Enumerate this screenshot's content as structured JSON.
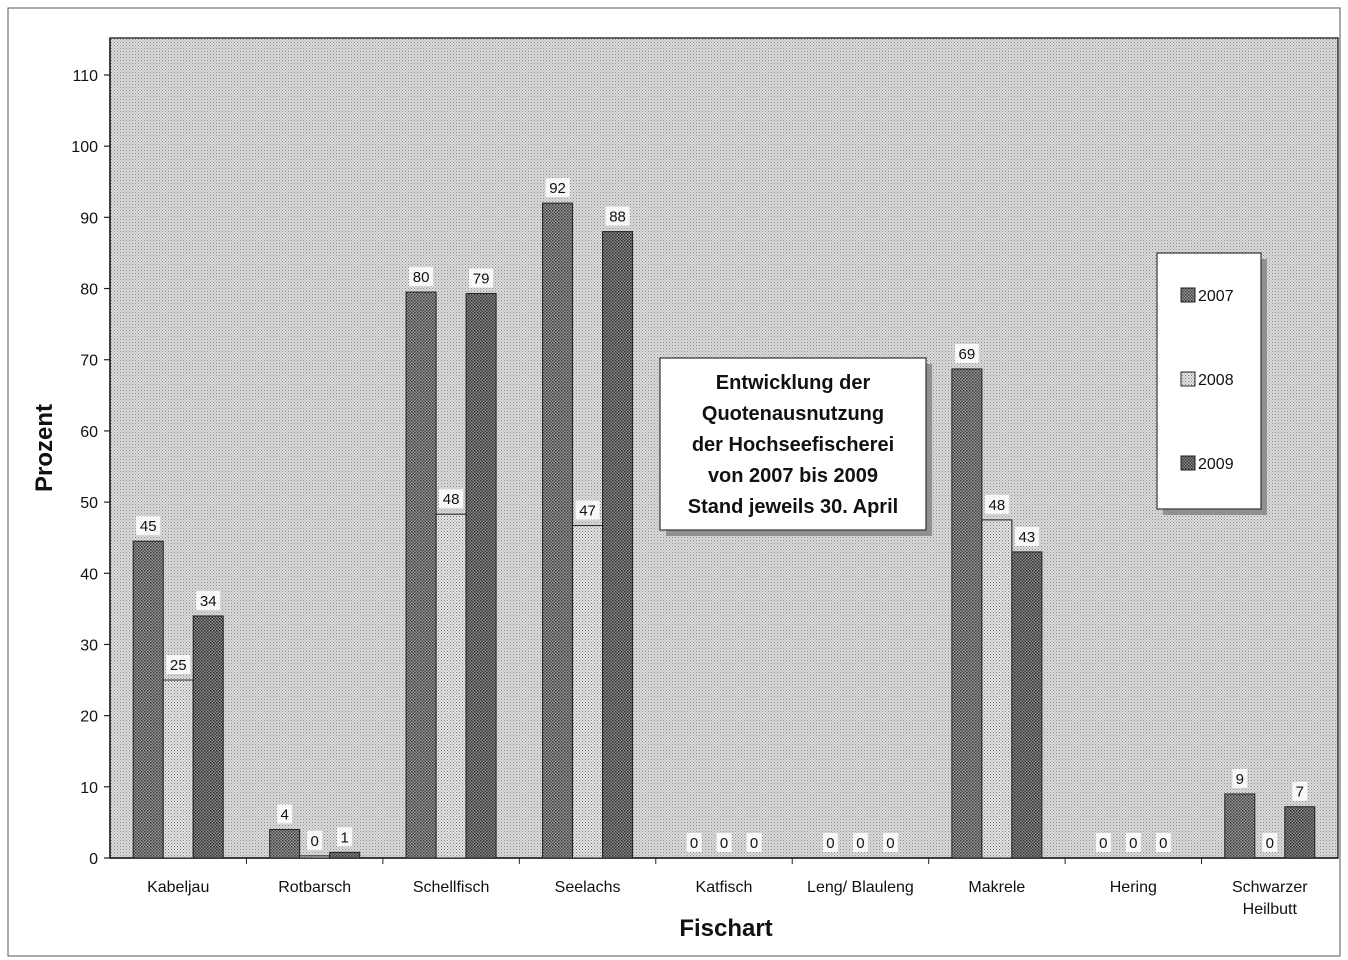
{
  "chart_data": {
    "type": "bar",
    "title_lines": [
      "Entwicklung der",
      "Quotenausnutzung",
      "der Hochseefischerei",
      "von 2007 bis 2009",
      "Stand jeweils 30. April"
    ],
    "xlabel": "Fischart",
    "ylabel": "Prozent",
    "ylim": [
      0,
      110
    ],
    "yticks": [
      0,
      10,
      20,
      30,
      40,
      50,
      60,
      70,
      80,
      90,
      100,
      110
    ],
    "grid": false,
    "legend_position": "right",
    "categories": [
      [
        "Kabeljau"
      ],
      [
        "Rotbarsch"
      ],
      [
        "Schellfisch"
      ],
      [
        "Seelachs"
      ],
      [
        "Katfisch"
      ],
      [
        "Leng/ Blauleng"
      ],
      [
        "Makrele"
      ],
      [
        "Hering"
      ],
      [
        "Schwarzer",
        "Heilbutt"
      ]
    ],
    "series": [
      {
        "name": "2007",
        "values": [
          44.5,
          4,
          79.5,
          92,
          0,
          0,
          68.7,
          0,
          9
        ],
        "labels": [
          "45",
          "4",
          "80",
          "92",
          "0",
          "0",
          "69",
          "0",
          "9"
        ]
      },
      {
        "name": "2008",
        "values": [
          25,
          0.3,
          48.3,
          46.7,
          0,
          0,
          47.5,
          0,
          0
        ],
        "labels": [
          "25",
          "0",
          "48",
          "47",
          "0",
          "0",
          "48",
          "0",
          "0"
        ]
      },
      {
        "name": "2009",
        "values": [
          34,
          0.8,
          79.3,
          88,
          0,
          0,
          43,
          0,
          7.2
        ],
        "labels": [
          "34",
          "1",
          "79",
          "88",
          "0",
          "0",
          "43",
          "0",
          "7"
        ]
      }
    ],
    "colors": {
      "plot_bg": "#cfcfcf",
      "series": [
        "#8a8a8a",
        "#d8d8d8",
        "#7d7d7d"
      ]
    }
  }
}
